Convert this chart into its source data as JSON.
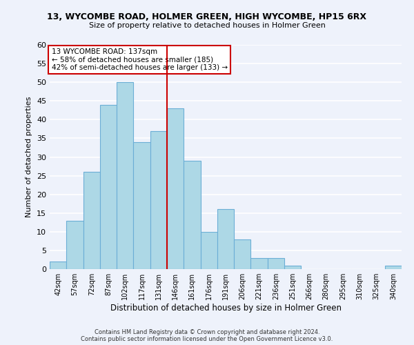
{
  "title": "13, WYCOMBE ROAD, HOLMER GREEN, HIGH WYCOMBE, HP15 6RX",
  "subtitle": "Size of property relative to detached houses in Holmer Green",
  "xlabel": "Distribution of detached houses by size in Holmer Green",
  "ylabel": "Number of detached properties",
  "bin_labels": [
    "42sqm",
    "57sqm",
    "72sqm",
    "87sqm",
    "102sqm",
    "117sqm",
    "131sqm",
    "146sqm",
    "161sqm",
    "176sqm",
    "191sqm",
    "206sqm",
    "221sqm",
    "236sqm",
    "251sqm",
    "266sqm",
    "280sqm",
    "295sqm",
    "310sqm",
    "325sqm",
    "340sqm"
  ],
  "bar_values": [
    2,
    13,
    26,
    44,
    50,
    34,
    37,
    43,
    29,
    10,
    16,
    8,
    3,
    3,
    1,
    0,
    0,
    0,
    0,
    0,
    1
  ],
  "bar_color": "#add8e6",
  "bar_edge_color": "#6baed6",
  "vline_color": "#cc0000",
  "ylim": [
    0,
    60
  ],
  "yticks": [
    0,
    5,
    10,
    15,
    20,
    25,
    30,
    35,
    40,
    45,
    50,
    55,
    60
  ],
  "annotation_title": "13 WYCOMBE ROAD: 137sqm",
  "annotation_line1": "← 58% of detached houses are smaller (185)",
  "annotation_line2": "42% of semi-detached houses are larger (133) →",
  "annotation_box_color": "#ffffff",
  "annotation_box_edge": "#cc0000",
  "footer1": "Contains HM Land Registry data © Crown copyright and database right 2024.",
  "footer2": "Contains public sector information licensed under the Open Government Licence v3.0.",
  "bg_color": "#eef2fb",
  "grid_color": "#ffffff"
}
